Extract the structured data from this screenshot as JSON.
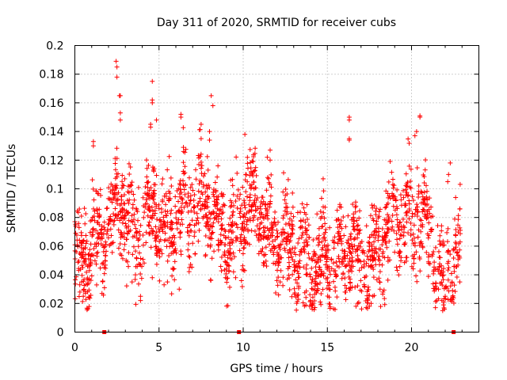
{
  "chart_data": {
    "type": "scatter",
    "title": "Day 311 of 2020, SRMTID for receiver cubs",
    "xlabel": "GPS time / hours",
    "ylabel": "SRMTID / TECUs",
    "xlim": [
      0,
      24
    ],
    "ylim": [
      0,
      0.2
    ],
    "x_ticks": [
      0,
      5,
      10,
      15,
      20
    ],
    "x_tick_labels": [
      "0",
      "5",
      "10",
      "15",
      "20"
    ],
    "y_ticks": [
      0,
      0.02,
      0.04,
      0.06,
      0.08,
      0.1,
      0.12,
      0.14,
      0.16,
      0.18,
      0.2
    ],
    "y_tick_labels": [
      "0",
      "0.02",
      "0.04",
      "0.06",
      "0.08",
      "0.1",
      "0.12",
      "0.14",
      "0.16",
      "0.18",
      "0.2"
    ],
    "grid": true,
    "marker": "plus",
    "series": [
      {
        "name": "SRMTID",
        "color": "#ff0000",
        "baseline": [
          [
            0.0,
            0.048
          ],
          [
            0.5,
            0.052
          ],
          [
            1.0,
            0.058
          ],
          [
            1.5,
            0.066
          ],
          [
            2.0,
            0.074
          ],
          [
            2.5,
            0.088
          ],
          [
            3.0,
            0.085
          ],
          [
            3.5,
            0.07
          ],
          [
            4.0,
            0.068
          ],
          [
            4.5,
            0.082
          ],
          [
            5.0,
            0.085
          ],
          [
            5.5,
            0.065
          ],
          [
            6.0,
            0.078
          ],
          [
            6.5,
            0.088
          ],
          [
            7.0,
            0.09
          ],
          [
            7.5,
            0.084
          ],
          [
            8.0,
            0.086
          ],
          [
            8.5,
            0.074
          ],
          [
            9.0,
            0.066
          ],
          [
            9.5,
            0.07
          ],
          [
            10.0,
            0.088
          ],
          [
            10.5,
            0.09
          ],
          [
            11.0,
            0.084
          ],
          [
            11.5,
            0.072
          ],
          [
            12.0,
            0.066
          ],
          [
            12.5,
            0.062
          ],
          [
            13.0,
            0.06
          ],
          [
            13.5,
            0.055
          ],
          [
            14.0,
            0.048
          ],
          [
            14.5,
            0.045
          ],
          [
            15.0,
            0.05
          ],
          [
            15.5,
            0.055
          ],
          [
            16.0,
            0.06
          ],
          [
            16.5,
            0.058
          ],
          [
            17.0,
            0.048
          ],
          [
            17.5,
            0.046
          ],
          [
            18.0,
            0.058
          ],
          [
            18.5,
            0.068
          ],
          [
            19.0,
            0.076
          ],
          [
            19.5,
            0.078
          ],
          [
            20.0,
            0.08
          ],
          [
            20.5,
            0.082
          ],
          [
            21.0,
            0.07
          ],
          [
            21.5,
            0.05
          ],
          [
            22.0,
            0.035
          ],
          [
            22.5,
            0.05
          ],
          [
            22.9,
            0.062
          ]
        ],
        "spread": 0.016,
        "density_per_hour": 95,
        "x_range": [
          0,
          22.9
        ],
        "highlights": [
          [
            2.45,
            0.189
          ],
          [
            2.5,
            0.185
          ],
          [
            2.5,
            0.178
          ],
          [
            2.65,
            0.165
          ],
          [
            2.7,
            0.165
          ],
          [
            4.6,
            0.175
          ],
          [
            4.6,
            0.162
          ],
          [
            4.6,
            0.16
          ],
          [
            8.1,
            0.165
          ],
          [
            8.2,
            0.158
          ],
          [
            6.3,
            0.152
          ],
          [
            6.3,
            0.15
          ],
          [
            4.85,
            0.148
          ],
          [
            16.3,
            0.15
          ],
          [
            16.3,
            0.148
          ],
          [
            16.3,
            0.135
          ],
          [
            16.3,
            0.134
          ],
          [
            20.5,
            0.151
          ],
          [
            20.5,
            0.15
          ],
          [
            2.7,
            0.153
          ],
          [
            2.7,
            0.148
          ],
          [
            4.5,
            0.145
          ],
          [
            4.5,
            0.143
          ],
          [
            20.3,
            0.14
          ],
          [
            20.2,
            0.137
          ],
          [
            7.5,
            0.145
          ],
          [
            7.5,
            0.135
          ],
          [
            10.1,
            0.138
          ],
          [
            8.0,
            0.14
          ],
          [
            8.0,
            0.134
          ],
          [
            1.1,
            0.133
          ],
          [
            1.1,
            0.13
          ],
          [
            22.3,
            0.118
          ],
          [
            22.2,
            0.11
          ],
          [
            22.15,
            0.105
          ],
          [
            14.75,
            0.107
          ],
          [
            11.6,
            0.127
          ],
          [
            11.6,
            0.12
          ],
          [
            0.05,
            0.074
          ],
          [
            0.05,
            0.069
          ],
          [
            0.25,
            0.073
          ],
          [
            0.4,
            0.035
          ],
          [
            0.3,
            0.028
          ],
          [
            0.5,
            0.025
          ],
          [
            3.9,
            0.022
          ],
          [
            3.9,
            0.025
          ],
          [
            13.95,
            0.018
          ],
          [
            14.1,
            0.016
          ],
          [
            14.15,
            0.02
          ],
          [
            14.0,
            0.022
          ],
          [
            16.7,
            0.018
          ],
          [
            16.8,
            0.02
          ],
          [
            17.6,
            0.02
          ],
          [
            17.5,
            0.018
          ],
          [
            17.7,
            0.025
          ],
          [
            21.85,
            0.015
          ],
          [
            21.95,
            0.016
          ],
          [
            21.8,
            0.022
          ],
          [
            21.9,
            0.019
          ],
          [
            22.0,
            0.025
          ],
          [
            21.6,
            0.03
          ],
          [
            21.7,
            0.034
          ],
          [
            22.05,
            0.032
          ],
          [
            12.2,
            0.035
          ],
          [
            12.0,
            0.036
          ],
          [
            8.95,
            0.038
          ],
          [
            9.55,
            0.038
          ],
          [
            4.6,
            0.038
          ],
          [
            5.3,
            0.033
          ],
          [
            5.5,
            0.035
          ],
          [
            3.4,
            0.035
          ],
          [
            3.6,
            0.04
          ],
          [
            6.2,
            0.03
          ],
          [
            13.3,
            0.032
          ],
          [
            15.1,
            0.03
          ],
          [
            16.05,
            0.028
          ],
          [
            18.3,
            0.028
          ],
          [
            18.1,
            0.035
          ],
          [
            17.2,
            0.032
          ]
        ],
        "baseline_markers_x": [
          1.75,
          9.75,
          22.5
        ],
        "baseline_markers_y": 0.0
      }
    ]
  }
}
